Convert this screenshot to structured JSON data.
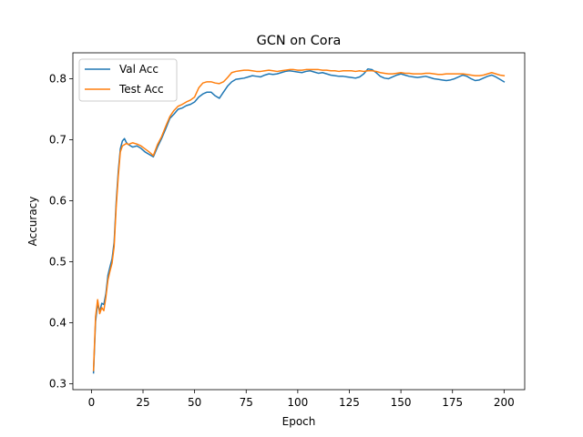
{
  "chart_data": {
    "type": "line",
    "title": "GCN on Cora",
    "xlabel": "Epoch",
    "ylabel": "Accuracy",
    "xlim": [
      -9,
      210
    ],
    "ylim": [
      0.2905,
      0.8425
    ],
    "xticks": [
      0,
      25,
      50,
      75,
      100,
      125,
      150,
      175,
      200
    ],
    "xtick_labels": [
      "0",
      "25",
      "50",
      "75",
      "100",
      "125",
      "150",
      "175",
      "200"
    ],
    "yticks": [
      0.3,
      0.4,
      0.5,
      0.6,
      0.7,
      0.8
    ],
    "ytick_labels": [
      "0.3",
      "0.4",
      "0.5",
      "0.6",
      "0.7",
      "0.8"
    ],
    "grid": false,
    "legend_position": "upper-left",
    "x": [
      1,
      2,
      3,
      4,
      5,
      6,
      7,
      8,
      9,
      10,
      11,
      12,
      13,
      14,
      15,
      16,
      17,
      18,
      19,
      20,
      22,
      24,
      26,
      28,
      30,
      32,
      34,
      36,
      38,
      40,
      42,
      44,
      46,
      48,
      50,
      52,
      54,
      56,
      58,
      60,
      62,
      64,
      66,
      68,
      70,
      72,
      74,
      76,
      78,
      80,
      82,
      84,
      86,
      88,
      90,
      92,
      94,
      96,
      98,
      100,
      102,
      104,
      106,
      108,
      110,
      112,
      114,
      116,
      118,
      120,
      122,
      124,
      126,
      128,
      130,
      132,
      134,
      136,
      138,
      140,
      142,
      144,
      146,
      148,
      150,
      152,
      154,
      156,
      158,
      160,
      162,
      164,
      166,
      168,
      170,
      172,
      174,
      176,
      178,
      180,
      182,
      184,
      186,
      188,
      190,
      192,
      194,
      196,
      198,
      200
    ],
    "series": [
      {
        "name": "Val Acc",
        "color": "#1f77b4",
        "values": [
          0.318,
          0.402,
          0.432,
          0.418,
          0.432,
          0.43,
          0.448,
          0.478,
          0.492,
          0.505,
          0.532,
          0.598,
          0.648,
          0.685,
          0.698,
          0.702,
          0.695,
          0.692,
          0.69,
          0.688,
          0.69,
          0.686,
          0.68,
          0.676,
          0.672,
          0.688,
          0.702,
          0.718,
          0.735,
          0.742,
          0.75,
          0.752,
          0.756,
          0.758,
          0.762,
          0.77,
          0.775,
          0.778,
          0.778,
          0.772,
          0.768,
          0.778,
          0.788,
          0.795,
          0.799,
          0.8,
          0.801,
          0.803,
          0.805,
          0.804,
          0.803,
          0.806,
          0.808,
          0.807,
          0.808,
          0.81,
          0.812,
          0.813,
          0.812,
          0.811,
          0.81,
          0.812,
          0.813,
          0.811,
          0.809,
          0.81,
          0.808,
          0.806,
          0.805,
          0.804,
          0.804,
          0.803,
          0.802,
          0.801,
          0.803,
          0.808,
          0.816,
          0.815,
          0.81,
          0.804,
          0.801,
          0.8,
          0.803,
          0.806,
          0.808,
          0.806,
          0.804,
          0.803,
          0.802,
          0.803,
          0.804,
          0.802,
          0.8,
          0.799,
          0.798,
          0.797,
          0.798,
          0.8,
          0.803,
          0.806,
          0.804,
          0.8,
          0.797,
          0.798,
          0.801,
          0.804,
          0.806,
          0.803,
          0.799,
          0.795
        ]
      },
      {
        "name": "Test Acc",
        "color": "#ff7f0e",
        "values": [
          0.322,
          0.41,
          0.438,
          0.415,
          0.425,
          0.42,
          0.442,
          0.47,
          0.485,
          0.498,
          0.525,
          0.59,
          0.64,
          0.68,
          0.69,
          0.692,
          0.694,
          0.692,
          0.694,
          0.695,
          0.693,
          0.69,
          0.685,
          0.68,
          0.674,
          0.692,
          0.705,
          0.722,
          0.738,
          0.748,
          0.755,
          0.758,
          0.762,
          0.765,
          0.77,
          0.785,
          0.793,
          0.795,
          0.795,
          0.793,
          0.792,
          0.795,
          0.802,
          0.81,
          0.812,
          0.813,
          0.814,
          0.814,
          0.813,
          0.812,
          0.812,
          0.813,
          0.814,
          0.813,
          0.812,
          0.813,
          0.814,
          0.815,
          0.815,
          0.814,
          0.814,
          0.815,
          0.815,
          0.815,
          0.815,
          0.814,
          0.814,
          0.813,
          0.813,
          0.812,
          0.813,
          0.813,
          0.813,
          0.812,
          0.813,
          0.812,
          0.813,
          0.813,
          0.812,
          0.81,
          0.809,
          0.808,
          0.808,
          0.809,
          0.81,
          0.809,
          0.809,
          0.808,
          0.808,
          0.808,
          0.809,
          0.809,
          0.808,
          0.807,
          0.807,
          0.808,
          0.808,
          0.808,
          0.808,
          0.808,
          0.807,
          0.806,
          0.805,
          0.805,
          0.806,
          0.808,
          0.81,
          0.808,
          0.806,
          0.805
        ]
      }
    ]
  }
}
